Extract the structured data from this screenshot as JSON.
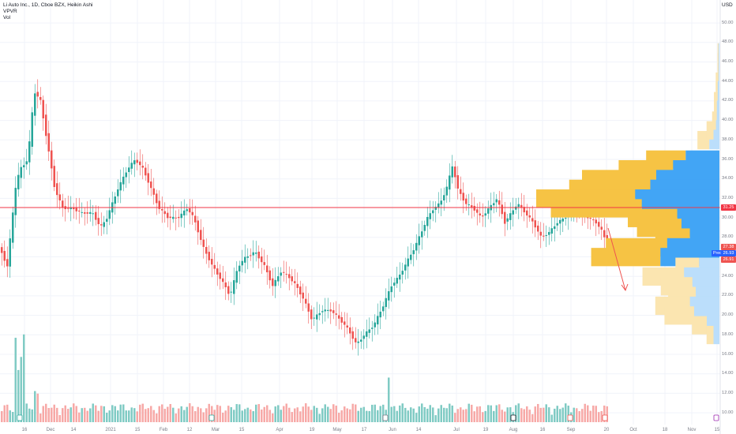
{
  "header": {
    "title": "Li Auto Inc., 1D, Cboe BZX, Heikin Ashi",
    "indicators": [
      "VPVR",
      "Vol"
    ]
  },
  "currency": "USD",
  "y_axis": {
    "ticks": [
      "50.00",
      "48.00",
      "46.00",
      "44.00",
      "42.00",
      "40.00",
      "38.00",
      "36.00",
      "34.00",
      "32.00",
      "30.00",
      "28.00",
      "26.00",
      "24.00",
      "22.00",
      "20.00",
      "18.00",
      "16.00",
      "14.00",
      "12.00",
      "10.00"
    ]
  },
  "x_axis": {
    "ticks": [
      "16",
      "Dec",
      "14",
      "2021",
      "15",
      "Feb",
      "12",
      "Mar",
      "15",
      "Apr",
      "19",
      "May",
      "17",
      "Jun",
      "14",
      "Jul",
      "19",
      "Aug",
      "16",
      "Sep",
      "20",
      "Oct",
      "18",
      "Nov",
      "15"
    ]
  },
  "price_labels": {
    "horizontal_line": "31.25",
    "level_a": "27.38",
    "current": "26.93",
    "level_b": "26.91",
    "tag": "Pred"
  },
  "colors": {
    "up": "#26a69a",
    "down": "#ef5350",
    "horizontal_line": "#f23645",
    "profile_down": "#f6c344",
    "profile_up": "#42a5f5",
    "profile_down_light": "#fbe5b0",
    "profile_up_light": "#bbdefb"
  },
  "icons": [
    "earnings-icon",
    "earnings-icon",
    "dividend-icon",
    "earnings-icon",
    "earnings-icon",
    "earnings-icon",
    "earnings-icon",
    "split-icon"
  ]
}
